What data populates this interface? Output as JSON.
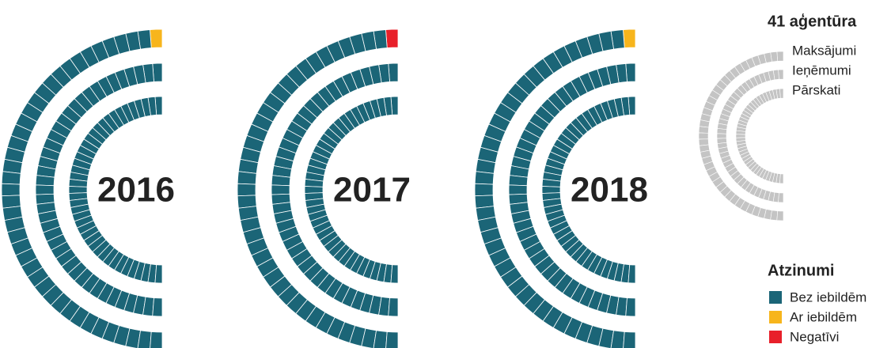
{
  "chart_data": {
    "type": "radial_waffle",
    "title": "41 aģentūra",
    "rings": [
      "Maksājumi",
      "Ieņēmumi",
      "Pārskati"
    ],
    "legend_title": "Atzinumi",
    "series": [
      {
        "name": "Bez iebildēm",
        "color": "#1b6577"
      },
      {
        "name": "Ar iebildēm",
        "color": "#f7b51c"
      },
      {
        "name": "Negatīvi",
        "color": "#e8202a"
      }
    ],
    "panels": [
      {
        "title": "2016",
        "values": [
          [
            40,
            1,
            0
          ],
          [
            41,
            0,
            0
          ],
          [
            41,
            0,
            0
          ]
        ]
      },
      {
        "title": "2017",
        "values": [
          [
            40,
            0,
            1
          ],
          [
            41,
            0,
            0
          ],
          [
            41,
            0,
            0
          ]
        ]
      },
      {
        "title": "2018",
        "values": [
          [
            40,
            1,
            0
          ],
          [
            41,
            0,
            0
          ],
          [
            41,
            0,
            0
          ]
        ]
      }
    ]
  }
}
